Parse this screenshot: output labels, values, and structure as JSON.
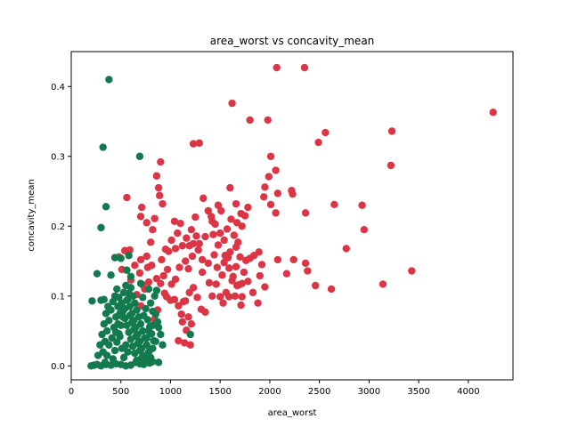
{
  "chart_data": {
    "type": "scatter",
    "title": "area_worst vs concavity_mean",
    "xlabel": "area_worst",
    "ylabel": "concavity_mean",
    "xlim": [
      0,
      4450
    ],
    "ylim": [
      -0.02,
      0.45
    ],
    "xticks": [
      0,
      500,
      1000,
      1500,
      2000,
      2500,
      3000,
      3500,
      4000
    ],
    "yticks": [
      0.0,
      0.1,
      0.2,
      0.3,
      0.4
    ],
    "xtick_labels": [
      "0",
      "500",
      "1000",
      "1500",
      "2000",
      "2500",
      "3000",
      "3500",
      "4000"
    ],
    "ytick_labels": [
      "0.0",
      "0.1",
      "0.2",
      "0.3",
      "0.4"
    ],
    "grid": false,
    "legend": "none",
    "series": [
      {
        "color": "#dc3545",
        "points": [
          [
            2070,
            0.427
          ],
          [
            2350,
            0.427
          ],
          [
            4250,
            0.363
          ],
          [
            3230,
            0.336
          ],
          [
            2560,
            0.334
          ],
          [
            2490,
            0.32
          ],
          [
            1230,
            0.318
          ],
          [
            1290,
            0.319
          ],
          [
            1620,
            0.376
          ],
          [
            1800,
            0.352
          ],
          [
            1980,
            0.352
          ],
          [
            3220,
            0.287
          ],
          [
            2010,
            0.3
          ],
          [
            2060,
            0.28
          ],
          [
            1990,
            0.271
          ],
          [
            1950,
            0.256
          ],
          [
            2220,
            0.251
          ],
          [
            2080,
            0.247
          ],
          [
            2230,
            0.246
          ],
          [
            1940,
            0.242
          ],
          [
            2010,
            0.231
          ],
          [
            2650,
            0.231
          ],
          [
            2930,
            0.23
          ],
          [
            2360,
            0.219
          ],
          [
            2060,
            0.219
          ],
          [
            2770,
            0.168
          ],
          [
            2950,
            0.195
          ],
          [
            2360,
            0.147
          ],
          [
            2380,
            0.136
          ],
          [
            2240,
            0.152
          ],
          [
            2080,
            0.152
          ],
          [
            2170,
            0.132
          ],
          [
            2460,
            0.115
          ],
          [
            2620,
            0.11
          ],
          [
            3140,
            0.117
          ],
          [
            3430,
            0.136
          ],
          [
            1890,
            0.163
          ],
          [
            1920,
            0.145
          ],
          [
            1950,
            0.113
          ],
          [
            1900,
            0.129
          ],
          [
            1830,
            0.105
          ],
          [
            1880,
            0.09
          ],
          [
            1720,
            0.118
          ],
          [
            1650,
            0.1
          ],
          [
            1710,
            0.087
          ],
          [
            1760,
            0.151
          ],
          [
            1800,
            0.154
          ],
          [
            1840,
            0.158
          ],
          [
            1680,
            0.177
          ],
          [
            1600,
            0.163
          ],
          [
            1580,
            0.155
          ],
          [
            1540,
            0.148
          ],
          [
            1660,
            0.17
          ],
          [
            1700,
            0.156
          ],
          [
            1640,
            0.187
          ],
          [
            1670,
            0.205
          ],
          [
            1710,
            0.218
          ],
          [
            1660,
            0.232
          ],
          [
            1780,
            0.227
          ],
          [
            1750,
            0.215
          ],
          [
            1720,
            0.2
          ],
          [
            1600,
            0.255
          ],
          [
            1570,
            0.196
          ],
          [
            1610,
            0.21
          ],
          [
            1480,
            0.173
          ],
          [
            1500,
            0.19
          ],
          [
            1450,
            0.203
          ],
          [
            1420,
            0.207
          ],
          [
            1380,
            0.222
          ],
          [
            1410,
            0.214
          ],
          [
            1330,
            0.24
          ],
          [
            1350,
            0.185
          ],
          [
            1320,
            0.152
          ],
          [
            1290,
            0.175
          ],
          [
            1250,
            0.213
          ],
          [
            1260,
            0.186
          ],
          [
            1230,
            0.175
          ],
          [
            1190,
            0.172
          ],
          [
            1160,
            0.183
          ],
          [
            1120,
            0.172
          ],
          [
            1100,
            0.204
          ],
          [
            1070,
            0.19
          ],
          [
            1050,
            0.168
          ],
          [
            1010,
            0.18
          ],
          [
            980,
            0.164
          ],
          [
            950,
            0.167
          ],
          [
            910,
            0.152
          ],
          [
            900,
            0.292
          ],
          [
            880,
            0.255
          ],
          [
            860,
            0.272
          ],
          [
            890,
            0.244
          ],
          [
            920,
            0.232
          ],
          [
            840,
            0.211
          ],
          [
            820,
            0.195
          ],
          [
            800,
            0.177
          ],
          [
            760,
            0.157
          ],
          [
            700,
            0.152
          ],
          [
            690,
            0.133
          ],
          [
            720,
            0.116
          ],
          [
            770,
            0.141
          ],
          [
            810,
            0.144
          ],
          [
            860,
            0.125
          ],
          [
            900,
            0.118
          ],
          [
            940,
            0.104
          ],
          [
            1010,
            0.117
          ],
          [
            1040,
            0.095
          ],
          [
            1080,
            0.086
          ],
          [
            1110,
            0.074
          ],
          [
            1150,
            0.093
          ],
          [
            1190,
            0.105
          ],
          [
            1230,
            0.112
          ],
          [
            1270,
            0.098
          ],
          [
            1310,
            0.081
          ],
          [
            1350,
            0.077
          ],
          [
            1390,
            0.119
          ],
          [
            1420,
            0.1
          ],
          [
            1460,
            0.117
          ],
          [
            1500,
            0.099
          ],
          [
            1530,
            0.09
          ],
          [
            1560,
            0.105
          ],
          [
            1590,
            0.099
          ],
          [
            1620,
            0.122
          ],
          [
            1670,
            0.115
          ],
          [
            1720,
            0.099
          ],
          [
            1130,
            0.092
          ],
          [
            1180,
            0.07
          ],
          [
            1210,
            0.06
          ],
          [
            1160,
            0.051
          ],
          [
            1120,
            0.063
          ],
          [
            1080,
            0.036
          ],
          [
            1200,
            0.03
          ],
          [
            1140,
            0.033
          ],
          [
            1000,
            0.094
          ],
          [
            960,
            0.099
          ],
          [
            870,
            0.08
          ],
          [
            840,
            0.067
          ],
          [
            780,
            0.12
          ],
          [
            740,
            0.11
          ],
          [
            660,
            0.102
          ],
          [
            700,
            0.086
          ],
          [
            540,
            0.165
          ],
          [
            510,
            0.138
          ],
          [
            560,
            0.241
          ],
          [
            710,
            0.227
          ],
          [
            700,
            0.214
          ],
          [
            760,
            0.205
          ],
          [
            590,
            0.166
          ],
          [
            640,
            0.144
          ],
          [
            480,
            0.156
          ],
          [
            600,
            0.123
          ],
          [
            930,
            0.129
          ],
          [
            970,
            0.138
          ],
          [
            1050,
            0.124
          ],
          [
            1090,
            0.141
          ],
          [
            1150,
            0.15
          ],
          [
            1180,
            0.139
          ],
          [
            1220,
            0.157
          ],
          [
            1280,
            0.166
          ],
          [
            1320,
            0.134
          ],
          [
            1380,
            0.147
          ],
          [
            1440,
            0.159
          ],
          [
            1470,
            0.141
          ],
          [
            1520,
            0.13
          ],
          [
            1550,
            0.158
          ],
          [
            1590,
            0.14
          ],
          [
            1630,
            0.128
          ],
          [
            1660,
            0.142
          ],
          [
            1690,
            0.116
          ],
          [
            1740,
            0.134
          ],
          [
            1780,
            0.121
          ],
          [
            1510,
            0.222
          ],
          [
            1480,
            0.23
          ],
          [
            1540,
            0.18
          ],
          [
            1430,
            0.188
          ],
          [
            1210,
            0.195
          ],
          [
            1040,
            0.207
          ]
        ]
      },
      {
        "color": "#127a4e",
        "points": [
          [
            380,
            0.41
          ],
          [
            320,
            0.313
          ],
          [
            690,
            0.3
          ],
          [
            350,
            0.228
          ],
          [
            300,
            0.198
          ],
          [
            440,
            0.155
          ],
          [
            500,
            0.154
          ],
          [
            580,
            0.158
          ],
          [
            600,
            0.128
          ],
          [
            400,
            0.13
          ],
          [
            260,
            0.132
          ],
          [
            210,
            0.093
          ],
          [
            300,
            0.094
          ],
          [
            330,
            0.095
          ],
          [
            560,
            0.137
          ],
          [
            700,
            0.118
          ],
          [
            720,
            0.098
          ],
          [
            780,
            0.11
          ],
          [
            800,
            0.09
          ],
          [
            820,
            0.078
          ],
          [
            850,
            0.074
          ],
          [
            870,
            0.063
          ],
          [
            820,
            0.058
          ],
          [
            780,
            0.05
          ],
          [
            760,
            0.04
          ],
          [
            850,
            0.035
          ],
          [
            820,
            0.025
          ],
          [
            1200,
            0.045
          ],
          [
            880,
            0.005
          ],
          [
            790,
            0.004
          ],
          [
            730,
            0.002
          ],
          [
            690,
            0.003
          ],
          [
            650,
            0.005
          ],
          [
            600,
            0.001
          ],
          [
            550,
            0.0
          ],
          [
            500,
            0.002
          ],
          [
            450,
            0.003
          ],
          [
            400,
            0.001
          ],
          [
            350,
            0.002
          ],
          [
            300,
            0.0
          ],
          [
            260,
            0.002
          ],
          [
            230,
            0.001
          ],
          [
            200,
            0.0
          ],
          [
            270,
            0.015
          ],
          [
            290,
            0.03
          ],
          [
            310,
            0.045
          ],
          [
            330,
            0.06
          ],
          [
            350,
            0.075
          ],
          [
            370,
            0.085
          ],
          [
            320,
            0.02
          ],
          [
            340,
            0.035
          ],
          [
            360,
            0.05
          ],
          [
            380,
            0.065
          ],
          [
            400,
            0.08
          ],
          [
            420,
            0.092
          ],
          [
            440,
            0.1
          ],
          [
            460,
            0.11
          ],
          [
            480,
            0.098
          ],
          [
            500,
            0.088
          ],
          [
            520,
            0.078
          ],
          [
            540,
            0.068
          ],
          [
            560,
            0.058
          ],
          [
            580,
            0.048
          ],
          [
            600,
            0.038
          ],
          [
            620,
            0.028
          ],
          [
            640,
            0.018
          ],
          [
            660,
            0.008
          ],
          [
            420,
            0.01
          ],
          [
            440,
            0.022
          ],
          [
            460,
            0.034
          ],
          [
            480,
            0.046
          ],
          [
            500,
            0.058
          ],
          [
            520,
            0.07
          ],
          [
            540,
            0.082
          ],
          [
            560,
            0.094
          ],
          [
            580,
            0.104
          ],
          [
            600,
            0.112
          ],
          [
            620,
            0.1
          ],
          [
            640,
            0.09
          ],
          [
            660,
            0.08
          ],
          [
            680,
            0.07
          ],
          [
            700,
            0.06
          ],
          [
            720,
            0.05
          ],
          [
            740,
            0.04
          ],
          [
            760,
            0.03
          ],
          [
            780,
            0.02
          ],
          [
            800,
            0.012
          ],
          [
            820,
            0.006
          ],
          [
            410,
            0.04
          ],
          [
            430,
            0.055
          ],
          [
            450,
            0.07
          ],
          [
            470,
            0.085
          ],
          [
            490,
            0.042
          ],
          [
            510,
            0.025
          ],
          [
            530,
            0.012
          ],
          [
            550,
            0.03
          ],
          [
            570,
            0.02
          ],
          [
            590,
            0.072
          ],
          [
            610,
            0.062
          ],
          [
            630,
            0.052
          ],
          [
            650,
            0.042
          ],
          [
            670,
            0.032
          ],
          [
            690,
            0.022
          ],
          [
            710,
            0.012
          ],
          [
            730,
            0.072
          ],
          [
            750,
            0.082
          ],
          [
            770,
            0.066
          ],
          [
            790,
            0.056
          ],
          [
            810,
            0.046
          ],
          [
            830,
            0.036
          ],
          [
            840,
            0.1
          ],
          [
            860,
            0.108
          ],
          [
            900,
            0.045
          ],
          [
            920,
            0.03
          ],
          [
            880,
            0.055
          ],
          [
            380,
            0.03
          ],
          [
            360,
            0.015
          ],
          [
            340,
            0.005
          ],
          [
            450,
            0.048
          ],
          [
            470,
            0.06
          ],
          [
            490,
            0.075
          ],
          [
            510,
            0.09
          ],
          [
            530,
            0.105
          ],
          [
            550,
            0.115
          ],
          [
            570,
            0.095
          ],
          [
            590,
            0.085
          ],
          [
            610,
            0.075
          ],
          [
            630,
            0.065
          ],
          [
            650,
            0.055
          ],
          [
            670,
            0.045
          ],
          [
            690,
            0.035
          ],
          [
            710,
            0.025
          ],
          [
            730,
            0.015
          ],
          [
            750,
            0.008
          ]
        ]
      }
    ]
  }
}
